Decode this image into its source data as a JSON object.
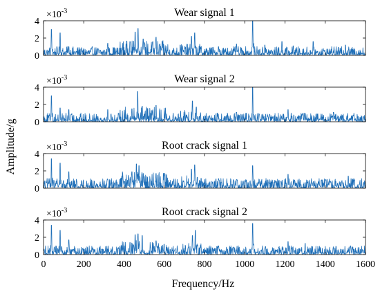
{
  "chart_data": {
    "type": "line",
    "xlabel": "Frequency/Hz",
    "ylabel": "Amplitude/g",
    "xlim": [
      0,
      1600
    ],
    "xticks": [
      "0",
      "200",
      "400",
      "600",
      "800",
      "1000",
      "1200",
      "1400",
      "1600"
    ],
    "ylim": [
      0,
      4
    ],
    "yticks": [
      "0",
      "2",
      "4"
    ],
    "y_multiplier_base": "×10",
    "y_multiplier_exp": "-3",
    "line_color": "#1f6fb8",
    "grid": false,
    "panels": [
      {
        "title": "Wear signal 1",
        "noise_floor": 0.45,
        "peaks": [
          {
            "x": 40,
            "y": 3.0
          },
          {
            "x": 82,
            "y": 2.6
          },
          {
            "x": 125,
            "y": 1.0
          },
          {
            "x": 190,
            "y": 0.8
          },
          {
            "x": 320,
            "y": 1.4
          },
          {
            "x": 430,
            "y": 1.6
          },
          {
            "x": 455,
            "y": 2.7
          },
          {
            "x": 470,
            "y": 3.1
          },
          {
            "x": 495,
            "y": 1.9
          },
          {
            "x": 560,
            "y": 2.1
          },
          {
            "x": 590,
            "y": 1.6
          },
          {
            "x": 680,
            "y": 1.2
          },
          {
            "x": 735,
            "y": 2.2
          },
          {
            "x": 752,
            "y": 2.6
          },
          {
            "x": 870,
            "y": 1.0
          },
          {
            "x": 960,
            "y": 1.3
          },
          {
            "x": 1040,
            "y": 4.0
          },
          {
            "x": 1100,
            "y": 1.2
          },
          {
            "x": 1185,
            "y": 1.6
          },
          {
            "x": 1240,
            "y": 1.1
          },
          {
            "x": 1340,
            "y": 1.6
          },
          {
            "x": 1500,
            "y": 1.2
          }
        ]
      },
      {
        "title": "Wear signal 2",
        "noise_floor": 0.45,
        "peaks": [
          {
            "x": 40,
            "y": 3.0
          },
          {
            "x": 82,
            "y": 1.6
          },
          {
            "x": 125,
            "y": 1.4
          },
          {
            "x": 320,
            "y": 1.4
          },
          {
            "x": 440,
            "y": 1.5
          },
          {
            "x": 468,
            "y": 3.5
          },
          {
            "x": 490,
            "y": 1.8
          },
          {
            "x": 560,
            "y": 1.9
          },
          {
            "x": 605,
            "y": 1.2
          },
          {
            "x": 740,
            "y": 2.4
          },
          {
            "x": 760,
            "y": 1.7
          },
          {
            "x": 960,
            "y": 1.1
          },
          {
            "x": 1040,
            "y": 4.0
          },
          {
            "x": 1215,
            "y": 1.4
          },
          {
            "x": 1295,
            "y": 1.0
          },
          {
            "x": 1440,
            "y": 1.1
          }
        ]
      },
      {
        "title": "Root crack signal 1",
        "noise_floor": 0.5,
        "peaks": [
          {
            "x": 40,
            "y": 3.4
          },
          {
            "x": 82,
            "y": 2.9
          },
          {
            "x": 125,
            "y": 1.9
          },
          {
            "x": 320,
            "y": 1.0
          },
          {
            "x": 440,
            "y": 1.9
          },
          {
            "x": 462,
            "y": 2.8
          },
          {
            "x": 475,
            "y": 2.6
          },
          {
            "x": 560,
            "y": 1.7
          },
          {
            "x": 600,
            "y": 1.4
          },
          {
            "x": 735,
            "y": 2.2
          },
          {
            "x": 752,
            "y": 2.7
          },
          {
            "x": 870,
            "y": 1.1
          },
          {
            "x": 960,
            "y": 1.0
          },
          {
            "x": 1040,
            "y": 2.6
          },
          {
            "x": 1215,
            "y": 1.6
          },
          {
            "x": 1400,
            "y": 1.0
          },
          {
            "x": 1515,
            "y": 1.4
          }
        ]
      },
      {
        "title": "Root crack signal 2",
        "noise_floor": 0.45,
        "peaks": [
          {
            "x": 40,
            "y": 3.4
          },
          {
            "x": 82,
            "y": 2.8
          },
          {
            "x": 125,
            "y": 1.7
          },
          {
            "x": 430,
            "y": 1.4
          },
          {
            "x": 455,
            "y": 2.3
          },
          {
            "x": 470,
            "y": 2.4
          },
          {
            "x": 490,
            "y": 2.2
          },
          {
            "x": 560,
            "y": 1.6
          },
          {
            "x": 600,
            "y": 1.2
          },
          {
            "x": 740,
            "y": 2.2
          },
          {
            "x": 755,
            "y": 2.8
          },
          {
            "x": 870,
            "y": 1.0
          },
          {
            "x": 1040,
            "y": 3.6
          },
          {
            "x": 1215,
            "y": 1.5
          },
          {
            "x": 1300,
            "y": 1.3
          },
          {
            "x": 1525,
            "y": 1.0
          }
        ]
      }
    ]
  }
}
